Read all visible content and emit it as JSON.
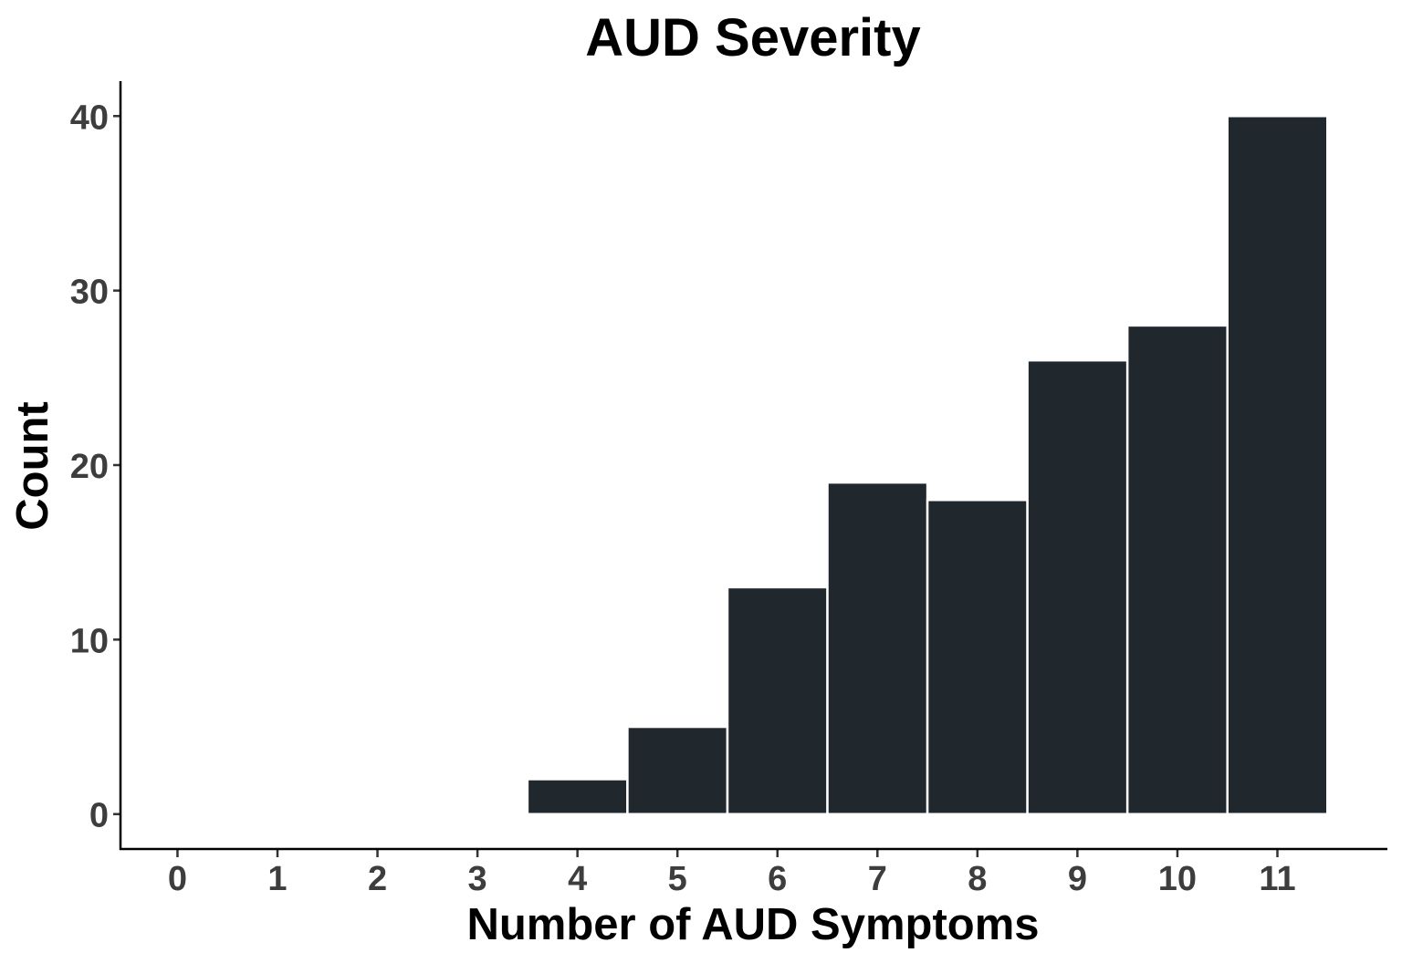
{
  "chart_data": {
    "type": "bar",
    "title": "AUD Severity",
    "xlabel": "Number of AUD Symptoms",
    "ylabel": "Count",
    "x_ticks": [
      "0",
      "1",
      "2",
      "3",
      "4",
      "5",
      "6",
      "7",
      "8",
      "9",
      "10",
      "11"
    ],
    "y_ticks": [
      "0",
      "10",
      "20",
      "30",
      "40"
    ],
    "categories": [
      4,
      5,
      6,
      7,
      8,
      9,
      10,
      11
    ],
    "values": [
      2,
      5,
      13,
      19,
      18,
      26,
      28,
      40
    ],
    "xlim": [
      -0.57,
      12.1
    ],
    "ylim": [
      -2,
      42
    ],
    "grid": false,
    "bar_color": "#20272d"
  }
}
